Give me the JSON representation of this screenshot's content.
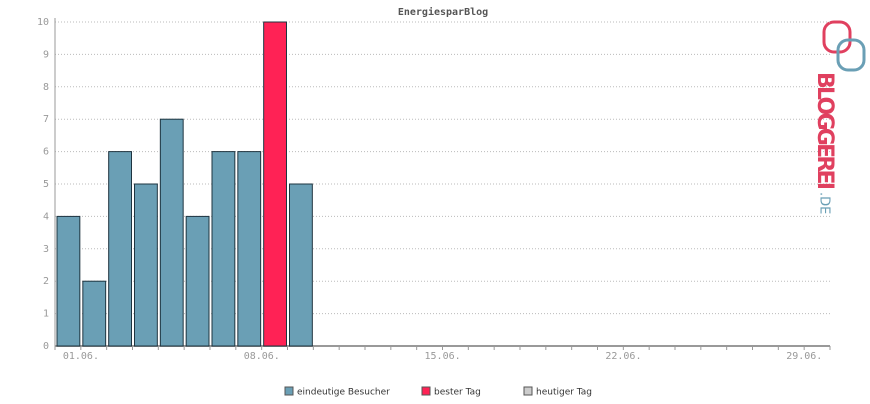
{
  "chart_data": {
    "type": "bar",
    "title": "EnergiesparBlog",
    "categories": [
      "01.06.",
      null,
      null,
      null,
      null,
      null,
      null,
      "08.06.",
      null,
      null,
      null,
      null,
      null,
      null,
      "15.06.",
      null,
      null,
      null,
      null,
      null,
      null,
      "22.06.",
      null,
      null,
      null,
      null,
      null,
      null,
      "29.06.",
      null
    ],
    "series": [
      {
        "name": "eindeutige Besucher",
        "color": "#6a9fb5",
        "values": [
          4,
          2,
          6,
          5,
          7,
          4,
          6,
          6,
          null,
          5,
          null,
          null,
          null,
          null,
          null,
          null,
          null,
          null,
          null,
          null,
          null,
          null,
          null,
          null,
          null,
          null,
          null,
          null,
          null,
          null
        ]
      },
      {
        "name": "bester Tag",
        "color": "#ff2255",
        "values": [
          null,
          null,
          null,
          null,
          null,
          null,
          null,
          null,
          10,
          null,
          null,
          null,
          null,
          null,
          null,
          null,
          null,
          null,
          null,
          null,
          null,
          null,
          null,
          null,
          null,
          null,
          null,
          null,
          null,
          null
        ]
      },
      {
        "name": "heutiger Tag",
        "color": "#cccccc",
        "values": [
          null,
          null,
          null,
          null,
          null,
          null,
          null,
          null,
          null,
          null,
          null,
          null,
          null,
          null,
          null,
          null,
          null,
          null,
          null,
          null,
          null,
          null,
          null,
          null,
          null,
          null,
          null,
          null,
          null,
          null
        ]
      }
    ],
    "ylim": [
      0,
      10
    ],
    "yticks": [
      0,
      1,
      2,
      3,
      4,
      5,
      6,
      7,
      8,
      9,
      10
    ],
    "grid": true,
    "stacked": true
  },
  "logo": {
    "text": "BLOGGEREI",
    "suffix": ".DE"
  }
}
